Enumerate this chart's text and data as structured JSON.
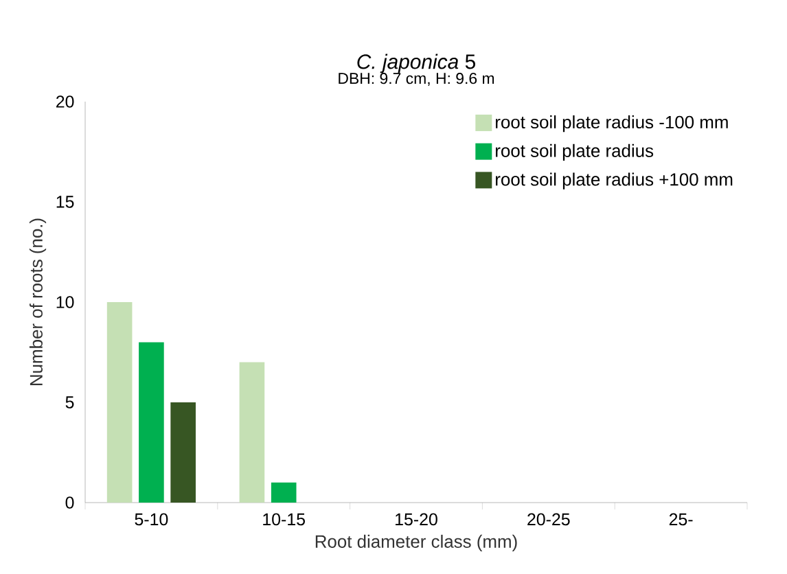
{
  "chart_data": {
    "type": "bar",
    "title": "*C. japonica* 5",
    "subtitle": "DBH: 9.7 cm, H: 9.6 m",
    "xlabel": "Root diameter class (mm)",
    "ylabel": "Number of roots (no.)",
    "categories": [
      "5-10",
      "10-15",
      "15-20",
      "20-25",
      "25-"
    ],
    "series": [
      {
        "name": "root soil plate radius -100 mm",
        "color": "#c5e0b4",
        "values": [
          10,
          7,
          0,
          0,
          0
        ]
      },
      {
        "name": "root soil plate radius",
        "color": "#00b050",
        "values": [
          8,
          1,
          0,
          0,
          0
        ]
      },
      {
        "name": "root soil plate radius +100 mm",
        "color": "#375623",
        "values": [
          5,
          0,
          0,
          0,
          0
        ]
      }
    ],
    "ylim": [
      0,
      20
    ],
    "yticks": [
      0,
      5,
      10,
      15,
      20
    ],
    "grid": false,
    "legend": "top right"
  }
}
